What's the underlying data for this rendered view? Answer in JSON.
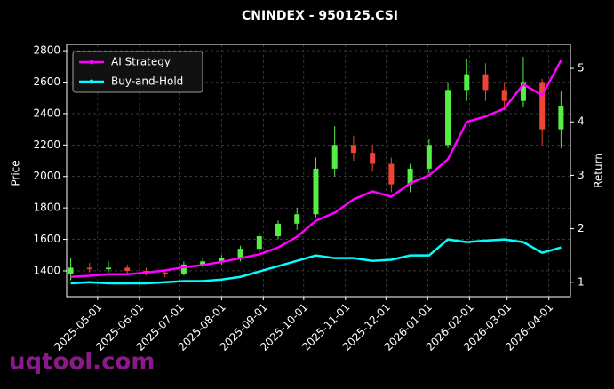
{
  "chart_data": {
    "type": "candlestick",
    "title": "CNINDEX - 950125.CSI",
    "ylabel": "Price",
    "y2label": "Return",
    "watermark": "uqtool.com",
    "x": [
      "2025-04-11",
      "2025-04-25",
      "2025-05-09",
      "2025-05-23",
      "2025-06-06",
      "2025-06-20",
      "2025-07-04",
      "2025-07-18",
      "2025-08-01",
      "2025-08-15",
      "2025-08-29",
      "2025-09-12",
      "2025-09-26",
      "2025-10-10",
      "2025-10-24",
      "2025-11-07",
      "2025-11-21",
      "2025-12-05",
      "2025-12-19",
      "2026-01-02",
      "2026-01-16",
      "2026-01-30",
      "2026-02-13",
      "2026-02-27",
      "2026-03-13",
      "2026-03-27",
      "2026-04-10"
    ],
    "open": [
      1380,
      1420,
      1410,
      1420,
      1400,
      1390,
      1380,
      1440,
      1460,
      1480,
      1540,
      1620,
      1700,
      1760,
      2050,
      2200,
      2150,
      2080,
      1950,
      2050,
      2200,
      2550,
      2650,
      2550,
      2480,
      2600,
      2300
    ],
    "high": [
      1480,
      1450,
      1460,
      1440,
      1420,
      1410,
      1460,
      1480,
      1500,
      1560,
      1640,
      1720,
      1800,
      2120,
      2320,
      2260,
      2200,
      2120,
      2080,
      2240,
      2600,
      2750,
      2720,
      2600,
      2760,
      2620,
      2540
    ],
    "low": [
      1340,
      1390,
      1390,
      1380,
      1370,
      1360,
      1370,
      1420,
      1440,
      1460,
      1520,
      1600,
      1660,
      1740,
      2000,
      2100,
      2030,
      1900,
      1900,
      2020,
      2180,
      2480,
      2480,
      2420,
      2440,
      2200,
      2180
    ],
    "close": [
      1420,
      1410,
      1420,
      1400,
      1390,
      1380,
      1440,
      1460,
      1480,
      1540,
      1620,
      1700,
      1760,
      2050,
      2200,
      2150,
      2080,
      1950,
      2050,
      2200,
      2550,
      2650,
      2550,
      2480,
      2600,
      2300,
      2450
    ],
    "up_color": "#55ee44",
    "down_color": "#ee4433",
    "series": [
      {
        "name": "AI Strategy",
        "color": "#ff00ff",
        "axis": "y2",
        "values": [
          1.1,
          1.12,
          1.15,
          1.15,
          1.18,
          1.22,
          1.28,
          1.32,
          1.38,
          1.45,
          1.52,
          1.65,
          1.85,
          2.15,
          2.3,
          2.55,
          2.7,
          2.6,
          2.85,
          3.0,
          3.3,
          4.0,
          4.1,
          4.25,
          4.7,
          4.5,
          5.15
        ]
      },
      {
        "name": "Buy-and-Hold",
        "color": "#00ffff",
        "axis": "y2",
        "values": [
          0.98,
          1.0,
          0.98,
          0.98,
          0.98,
          1.0,
          1.02,
          1.02,
          1.05,
          1.1,
          1.2,
          1.3,
          1.4,
          1.5,
          1.45,
          1.45,
          1.4,
          1.42,
          1.5,
          1.5,
          1.8,
          1.75,
          1.78,
          1.8,
          1.75,
          1.55,
          1.65
        ]
      }
    ],
    "xlim": [
      "2025-04-08",
      "2026-04-17"
    ],
    "xticks": [
      "2025-05-01",
      "2025-06-01",
      "2025-07-01",
      "2025-08-01",
      "2025-09-01",
      "2025-10-01",
      "2025-11-01",
      "2025-12-01",
      "2026-01-01",
      "2026-02-01",
      "2026-03-01",
      "2026-04-01"
    ],
    "ylim": [
      1236,
      2840
    ],
    "yticks": [
      1400,
      1600,
      1800,
      2000,
      2200,
      2400,
      2600,
      2800
    ],
    "y2lim": [
      0.73,
      5.45
    ],
    "y2ticks": [
      1,
      2,
      3,
      4,
      5
    ],
    "grid": true,
    "legend": "upper left"
  }
}
